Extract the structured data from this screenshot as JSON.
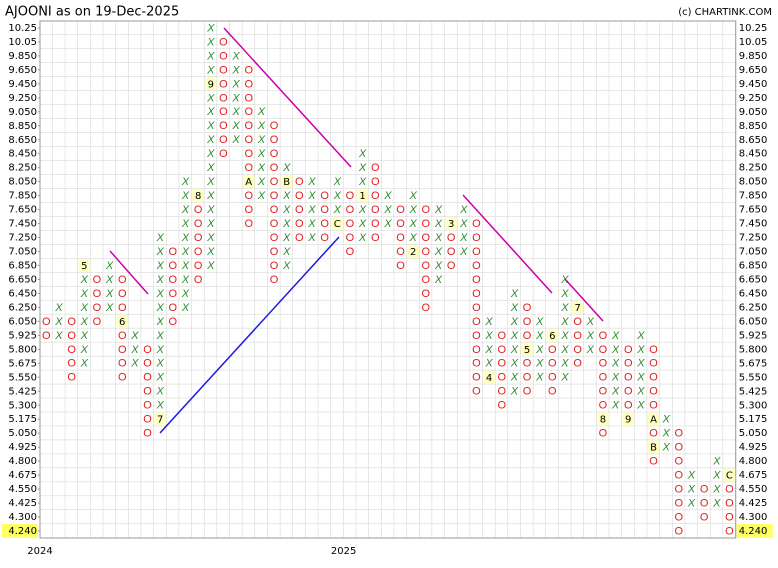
{
  "chart_data": {
    "type": "point-and-figure",
    "title": "AJOONI as on 19-Dec-2025",
    "credit": "(c) CHARTINK.COM",
    "x_color": "#2e8b2e",
    "o_color": "#e02020",
    "marker_color": "#ffffc0",
    "grid": true,
    "yticks": [
      10.25,
      10.05,
      {
        "value": 9.85,
        "label": "9.850"
      },
      {
        "value": 9.65,
        "label": "9.650"
      },
      {
        "value": 9.45,
        "label": "9.450"
      },
      {
        "value": 9.25,
        "label": "9.250"
      },
      {
        "value": 9.05,
        "label": "9.050"
      },
      {
        "value": 8.85,
        "label": "8.850"
      },
      {
        "value": 8.65,
        "label": "8.650"
      },
      {
        "value": 8.45,
        "label": "8.450"
      },
      {
        "value": 8.25,
        "label": "8.250"
      },
      {
        "value": 8.05,
        "label": "8.050"
      },
      {
        "value": 7.85,
        "label": "7.850"
      },
      {
        "value": 7.65,
        "label": "7.650"
      },
      {
        "value": 7.45,
        "label": "7.450"
      },
      {
        "value": 7.25,
        "label": "7.250"
      },
      {
        "value": 7.05,
        "label": "7.050"
      },
      {
        "value": 6.85,
        "label": "6.850"
      },
      {
        "value": 6.65,
        "label": "6.650"
      },
      {
        "value": 6.45,
        "label": "6.450"
      },
      {
        "value": 6.25,
        "label": "6.250"
      },
      {
        "value": 6.05,
        "label": "6.050"
      },
      5.925,
      {
        "value": 5.8,
        "label": "5.800"
      },
      5.675,
      {
        "value": 5.55,
        "label": "5.550"
      },
      5.425,
      {
        "value": 5.3,
        "label": "5.300"
      },
      5.175,
      {
        "value": 5.05,
        "label": "5.050"
      },
      4.925,
      {
        "value": 4.8,
        "label": "4.800"
      },
      4.675,
      {
        "value": 4.55,
        "label": "4.550"
      },
      4.425,
      {
        "value": 4.3,
        "label": "4.300"
      }
    ],
    "last_price": {
      "value": 4.24,
      "label": "4.240"
    },
    "year_labels": [
      {
        "label": "2024",
        "column": 0
      },
      {
        "label": "2025",
        "column": 24
      }
    ],
    "columns": [
      {
        "type": "O",
        "high": 6.05,
        "low": 5.925
      },
      {
        "type": "X",
        "high": 6.25,
        "low": 5.925
      },
      {
        "type": "O",
        "high": 6.05,
        "low": 5.55
      },
      {
        "type": "X",
        "high": 6.85,
        "low": 5.675,
        "markers": [
          {
            "label": "5",
            "value": 6.85
          }
        ]
      },
      {
        "type": "O",
        "high": 6.65,
        "low": 6.05
      },
      {
        "type": "X",
        "high": 6.85,
        "low": 6.25
      },
      {
        "type": "O",
        "high": 6.65,
        "low": 5.55,
        "markers": [
          {
            "label": "6",
            "value": 6.05
          }
        ]
      },
      {
        "type": "X",
        "high": 5.925,
        "low": 5.675
      },
      {
        "type": "O",
        "high": 5.8,
        "low": 5.05
      },
      {
        "type": "X",
        "high": 7.25,
        "low": 5.175,
        "markers": [
          {
            "label": "7",
            "value": 5.175
          }
        ]
      },
      {
        "type": "O",
        "high": 7.05,
        "low": 6.05
      },
      {
        "type": "X",
        "high": 8.05,
        "low": 6.25
      },
      {
        "type": "O",
        "high": 7.85,
        "low": 6.65,
        "markers": [
          {
            "label": "8",
            "value": 7.85
          }
        ]
      },
      {
        "type": "X",
        "high": 10.25,
        "low": 6.85,
        "markers": [
          {
            "label": "9",
            "value": 9.45
          }
        ]
      },
      {
        "type": "O",
        "high": 10.05,
        "low": 8.45
      },
      {
        "type": "X",
        "high": 9.85,
        "low": 8.65
      },
      {
        "type": "O",
        "high": 9.65,
        "low": 7.45,
        "markers": [
          {
            "label": "A",
            "value": 8.05
          }
        ]
      },
      {
        "type": "X",
        "high": 9.05,
        "low": 7.85
      },
      {
        "type": "O",
        "high": 8.85,
        "low": 6.65
      },
      {
        "type": "X",
        "high": 8.25,
        "low": 6.85,
        "markers": [
          {
            "label": "B",
            "value": 8.05
          }
        ]
      },
      {
        "type": "O",
        "high": 8.05,
        "low": 7.25
      },
      {
        "type": "X",
        "high": 8.05,
        "low": 7.25
      },
      {
        "type": "O",
        "high": 7.85,
        "low": 7.25
      },
      {
        "type": "X",
        "high": 8.05,
        "low": 7.45,
        "markers": [
          {
            "label": "C",
            "value": 7.45
          }
        ]
      },
      {
        "type": "O",
        "high": 7.85,
        "low": 7.05
      },
      {
        "type": "X",
        "high": 8.45,
        "low": 7.25,
        "markers": [
          {
            "label": "1",
            "value": 7.85
          }
        ]
      },
      {
        "type": "O",
        "high": 8.25,
        "low": 7.25
      },
      {
        "type": "X",
        "high": 7.85,
        "low": 7.45
      },
      {
        "type": "O",
        "high": 7.65,
        "low": 6.85
      },
      {
        "type": "X",
        "high": 7.85,
        "low": 7.05,
        "markers": [
          {
            "label": "2",
            "value": 7.05
          }
        ]
      },
      {
        "type": "O",
        "high": 7.65,
        "low": 6.25
      },
      {
        "type": "X",
        "high": 7.65,
        "low": 6.65
      },
      {
        "type": "O",
        "high": 7.45,
        "low": 6.85,
        "markers": [
          {
            "label": "3",
            "value": 7.45
          }
        ]
      },
      {
        "type": "X",
        "high": 7.65,
        "low": 7.05
      },
      {
        "type": "O",
        "high": 7.45,
        "low": 5.425
      },
      {
        "type": "X",
        "high": 6.05,
        "low": 5.55,
        "markers": [
          {
            "label": "4",
            "value": 5.55
          }
        ]
      },
      {
        "type": "O",
        "high": 5.925,
        "low": 5.3
      },
      {
        "type": "X",
        "high": 6.45,
        "low": 5.425
      },
      {
        "type": "O",
        "high": 6.25,
        "low": 5.425,
        "markers": [
          {
            "label": "5",
            "value": 5.8
          }
        ]
      },
      {
        "type": "X",
        "high": 6.05,
        "low": 5.55
      },
      {
        "type": "O",
        "high": 5.925,
        "low": 5.425,
        "markers": [
          {
            "label": "6",
            "value": 5.925
          }
        ]
      },
      {
        "type": "X",
        "high": 6.65,
        "low": 5.55
      },
      {
        "type": "O",
        "high": 6.25,
        "low": 5.675,
        "markers": [
          {
            "label": "7",
            "value": 6.25
          }
        ]
      },
      {
        "type": "X",
        "high": 6.05,
        "low": 5.8
      },
      {
        "type": "O",
        "high": 5.925,
        "low": 5.05,
        "markers": [
          {
            "label": "8",
            "value": 5.175
          }
        ]
      },
      {
        "type": "X",
        "high": 5.925,
        "low": 5.3
      },
      {
        "type": "O",
        "high": 5.8,
        "low": 5.175,
        "markers": [
          {
            "label": "9",
            "value": 5.175
          }
        ]
      },
      {
        "type": "X",
        "high": 5.925,
        "low": 5.3
      },
      {
        "type": "O",
        "high": 5.8,
        "low": 4.8,
        "markers": [
          {
            "label": "A",
            "value": 5.175
          },
          {
            "label": "B",
            "value": 4.925
          }
        ]
      },
      {
        "type": "X",
        "high": 5.175,
        "low": 4.925
      },
      {
        "type": "O",
        "high": 5.05,
        "low": 4.24
      },
      {
        "type": "X",
        "high": 4.675,
        "low": 4.425
      },
      {
        "type": "O",
        "high": 4.55,
        "low": 4.3
      },
      {
        "type": "X",
        "high": 4.8,
        "low": 4.425
      },
      {
        "type": "O",
        "high": 4.675,
        "low": 4.24,
        "markers": [
          {
            "label": "C",
            "value": 4.675
          }
        ]
      }
    ]
  }
}
